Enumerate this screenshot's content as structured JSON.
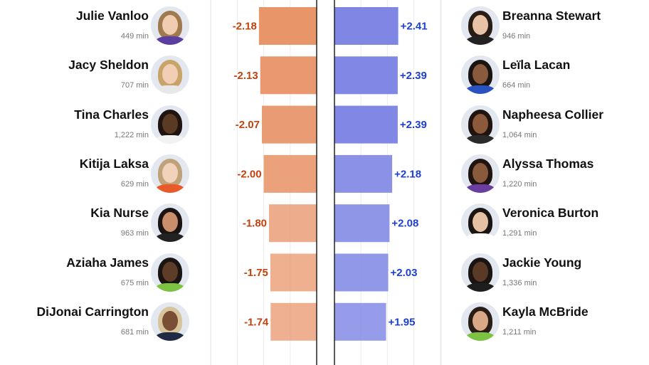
{
  "chart_data": {
    "type": "bar",
    "orientation": "horizontal-diverging",
    "xlim": [
      -3.0,
      3.0
    ],
    "grid": true,
    "left_series": {
      "color": "#e8956a",
      "label_color": "#c2410c",
      "players": [
        {
          "name": "Julie Vanloo",
          "minutes": "449 min",
          "value": -2.18,
          "label": "-2.18"
        },
        {
          "name": "Jacy Sheldon",
          "minutes": "707 min",
          "value": -2.13,
          "label": "-2.13"
        },
        {
          "name": "Tina Charles",
          "minutes": "1,222 min",
          "value": -2.07,
          "label": "-2.07"
        },
        {
          "name": "Kitija Laksa",
          "minutes": "629 min",
          "value": -2.0,
          "label": "-2.00"
        },
        {
          "name": "Kia Nurse",
          "minutes": "963 min",
          "value": -1.8,
          "label": "-1.80"
        },
        {
          "name": "Aziaha James",
          "minutes": "675 min",
          "value": -1.75,
          "label": "-1.75"
        },
        {
          "name": "DiJonai Carrington",
          "minutes": "681 min",
          "value": -1.74,
          "label": "-1.74"
        }
      ]
    },
    "right_series": {
      "color": "#7f86e4",
      "label_color": "#1d3fd1",
      "players": [
        {
          "name": "Breanna Stewart",
          "minutes": "946 min",
          "value": 2.41,
          "label": "+2.41"
        },
        {
          "name": "Leïla Lacan",
          "minutes": "664 min",
          "value": 2.39,
          "label": "+2.39"
        },
        {
          "name": "Napheesa Collier",
          "minutes": "1,064 min",
          "value": 2.39,
          "label": "+2.39"
        },
        {
          "name": "Alyssa Thomas",
          "minutes": "1,220 min",
          "value": 2.18,
          "label": "+2.18"
        },
        {
          "name": "Veronica Burton",
          "minutes": "1,291 min",
          "value": 2.08,
          "label": "+2.08"
        },
        {
          "name": "Jackie Young",
          "minutes": "1,336 min",
          "value": 2.03,
          "label": "+2.03"
        },
        {
          "name": "Kayla McBride",
          "minutes": "1,211 min",
          "value": 1.95,
          "label": "+1.95"
        }
      ]
    }
  },
  "avatars": {
    "left": [
      {
        "icon": "player-photo-icon",
        "hair": "#a07a4e",
        "skin": "#f0cdb0",
        "jersey": "#5a3fa0"
      },
      {
        "icon": "player-photo-icon",
        "hair": "#c9a46a",
        "skin": "#f2cfb4",
        "jersey": "#e8e8e8"
      },
      {
        "icon": "player-photo-icon",
        "hair": "#1f1410",
        "skin": "#5b3a24",
        "jersey": "#f2f2f2"
      },
      {
        "icon": "player-photo-icon",
        "hair": "#bfa27a",
        "skin": "#f1d2bb",
        "jersey": "#e85a2a"
      },
      {
        "icon": "player-photo-icon",
        "hair": "#1a1412",
        "skin": "#c88f6a",
        "jersey": "#222222"
      },
      {
        "icon": "player-photo-icon",
        "hair": "#1a1412",
        "skin": "#5d3d28",
        "jersey": "#7dc242"
      },
      {
        "icon": "player-photo-icon",
        "hair": "#d8c49a",
        "skin": "#7a4e34",
        "jersey": "#1f2a44"
      }
    ],
    "right": [
      {
        "icon": "player-photo-icon",
        "hair": "#2a1d16",
        "skin": "#e9c3a6",
        "jersey": "#222222"
      },
      {
        "icon": "player-photo-icon",
        "hair": "#1a1412",
        "skin": "#8a5a3c",
        "jersey": "#2a52be"
      },
      {
        "icon": "player-photo-icon",
        "hair": "#1f1410",
        "skin": "#8b5a3a",
        "jersey": "#2a2a2a"
      },
      {
        "icon": "player-photo-icon",
        "hair": "#1f1410",
        "skin": "#8a5a3c",
        "jersey": "#6a3ea0"
      },
      {
        "icon": "player-photo-icon",
        "hair": "#1a1412",
        "skin": "#e6c0a2",
        "jersey": "#ffffff"
      },
      {
        "icon": "player-photo-icon",
        "hair": "#1a1412",
        "skin": "#5a3a26",
        "jersey": "#1e1e1e"
      },
      {
        "icon": "player-photo-icon",
        "hair": "#2a1d16",
        "skin": "#d9a987",
        "jersey": "#7dc242"
      }
    ]
  }
}
